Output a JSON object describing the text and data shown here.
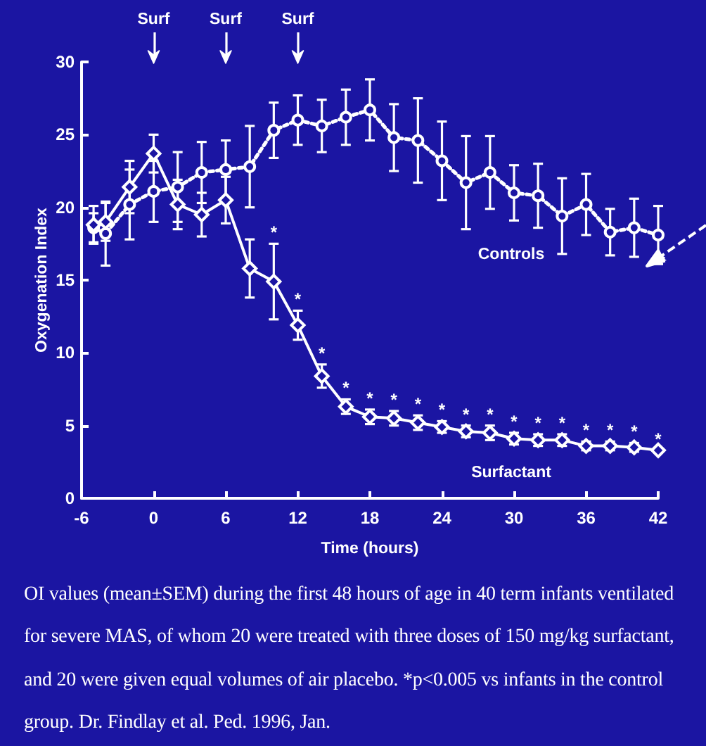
{
  "chart_data": {
    "type": "line",
    "xlabel": "Time (hours)",
    "ylabel": "Oxygenation Index",
    "xlim": [
      -6,
      42
    ],
    "xticks": [
      -6,
      0,
      6,
      12,
      18,
      24,
      30,
      36,
      42
    ],
    "ylim": [
      0,
      30
    ],
    "yticks": [
      0,
      5,
      10,
      15,
      20,
      25,
      30
    ],
    "x": [
      -5,
      -4,
      -2,
      0,
      2,
      4,
      6,
      8,
      10,
      12,
      14,
      16,
      18,
      20,
      22,
      24,
      26,
      28,
      30,
      32,
      34,
      36,
      38,
      40,
      42
    ],
    "series": [
      {
        "name": "Controls",
        "color": "#ffffff",
        "marker": "circle",
        "line_style": "dotted",
        "values": [
          18.6,
          18.2,
          20.2,
          21.1,
          21.4,
          22.4,
          22.6,
          22.8,
          25.3,
          26.0,
          25.6,
          26.2,
          26.7,
          24.8,
          24.6,
          23.2,
          21.7,
          22.4,
          21.0,
          20.8,
          19.4,
          20.2,
          18.3,
          18.6,
          18.1
        ],
        "errors": [
          1.0,
          2.2,
          2.4,
          2.1,
          2.4,
          2.1,
          2.0,
          2.8,
          1.9,
          1.7,
          1.8,
          1.9,
          2.1,
          2.3,
          2.9,
          2.7,
          3.2,
          2.5,
          1.9,
          2.2,
          2.6,
          2.1,
          1.6,
          2.0,
          2.0
        ]
      },
      {
        "name": "Surfactant",
        "color": "#ffffff",
        "marker": "diamond",
        "line_style": "solid",
        "values": [
          18.8,
          19.0,
          21.4,
          23.7,
          20.2,
          19.5,
          20.5,
          15.8,
          14.9,
          11.9,
          8.4,
          6.3,
          5.6,
          5.5,
          5.2,
          4.9,
          4.6,
          4.5,
          4.1,
          4.0,
          4.0,
          3.6,
          3.6,
          3.5,
          3.3
        ],
        "errors": [
          1.3,
          1.3,
          1.8,
          1.3,
          1.7,
          1.5,
          1.6,
          2.0,
          2.6,
          1.0,
          0.8,
          0.5,
          0.5,
          0.5,
          0.5,
          0.4,
          0.4,
          0.5,
          0.4,
          0.4,
          0.4,
          0.3,
          0.3,
          0.3,
          null
        ]
      }
    ],
    "ref_lines": [
      {
        "axis": "x",
        "value": 0,
        "label": "Surf",
        "color": "#ffffff"
      },
      {
        "axis": "x",
        "value": 6,
        "label": "Surf",
        "color": "#ffffff"
      },
      {
        "axis": "x",
        "value": 12,
        "label": "Surf",
        "color": "#ffffff"
      }
    ],
    "annotations": [
      {
        "text": "*",
        "x": 10,
        "y": 17.5
      },
      {
        "text": "*",
        "x": 12,
        "y": 11.9
      },
      {
        "text": "*",
        "x": 14,
        "y": 8.4
      },
      {
        "text": "*",
        "x": 16,
        "y": 6.3
      },
      {
        "text": "*",
        "x": 18,
        "y": 5.6
      },
      {
        "text": "*",
        "x": 20,
        "y": 5.5
      },
      {
        "text": "*",
        "x": 22,
        "y": 5.2
      },
      {
        "text": "*",
        "x": 24,
        "y": 4.9
      },
      {
        "text": "*",
        "x": 26,
        "y": 4.6
      },
      {
        "text": "*",
        "x": 28,
        "y": 4.5
      },
      {
        "text": "*",
        "x": 30,
        "y": 4.1
      },
      {
        "text": "*",
        "x": 32,
        "y": 4.0
      },
      {
        "text": "*",
        "x": 34,
        "y": 4.0
      },
      {
        "text": "*",
        "x": 36,
        "y": 3.6
      },
      {
        "text": "*",
        "x": 38,
        "y": 3.6
      },
      {
        "text": "*",
        "x": 40,
        "y": 3.5
      },
      {
        "text": "*",
        "x": 42,
        "y": 3.3
      },
      "OI values (mean±SEM) during the first 48 hours of age in 40 term infants ventilated for severe MAS, of whom 20 were treated with three doses of 150 mg/kg surfactant, and 20 were given equal volumes of air placebo. *p<0.005 vs infants in the control group. Dr. Findlay et al. Ped. 1996, Jan."
    ]
  }
}
